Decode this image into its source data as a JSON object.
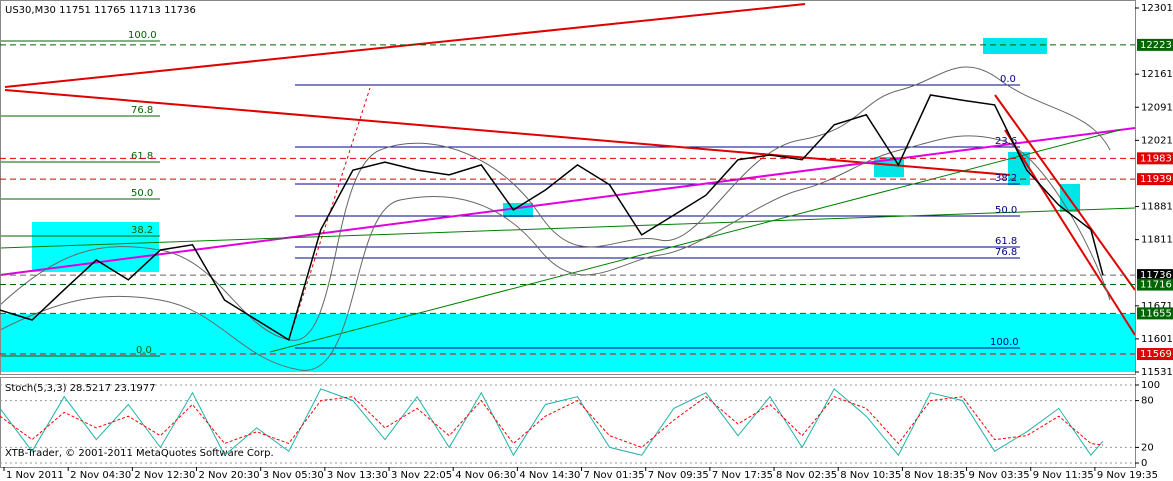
{
  "chart_data": [
    {
      "type": "line",
      "title": "US30,M30  11751 11765 11713 11736",
      "x": [
        0,
        8,
        16,
        24,
        32,
        40,
        48,
        56,
        64,
        72,
        80,
        88,
        96,
        104,
        112,
        120,
        128,
        136,
        144,
        152,
        160,
        168,
        176,
        184,
        192,
        200,
        208,
        216,
        224,
        232,
        240,
        248,
        256,
        264,
        272,
        275
      ],
      "xlim": [
        0,
        283
      ],
      "xticks": [
        {
          "value": 1,
          "label": "1 Nov 2011"
        },
        {
          "value": 17,
          "label": "2 Nov 04:30"
        },
        {
          "value": 33,
          "label": "2 Nov 12:30"
        },
        {
          "value": 49,
          "label": "2 Nov 20:30"
        },
        {
          "value": 65,
          "label": "3 Nov 05:30"
        },
        {
          "value": 81,
          "label": "3 Nov 13:30"
        },
        {
          "value": 97,
          "label": "3 Nov 22:05"
        },
        {
          "value": 113,
          "label": "4 Nov 06:30"
        },
        {
          "value": 129,
          "label": "4 Nov 14:30"
        },
        {
          "value": 145,
          "label": "7 Nov 01:35"
        },
        {
          "value": 161,
          "label": "7 Nov 09:35"
        },
        {
          "value": 177,
          "label": "7 Nov 17:35"
        },
        {
          "value": 193,
          "label": "8 Nov 02:35"
        },
        {
          "value": 209,
          "label": "8 Nov 10:35"
        },
        {
          "value": 225,
          "label": "8 Nov 18:35"
        },
        {
          "value": 241,
          "label": "9 Nov 03:35"
        },
        {
          "value": 257,
          "label": "9 Nov 11:35"
        },
        {
          "value": 273,
          "label": "9 Nov 19:35"
        }
      ],
      "color": "#000000",
      "values": [
        11662,
        11641,
        11705,
        11768,
        11726,
        11789,
        11800,
        11683,
        11641,
        11599,
        11832,
        11958,
        11975,
        11958,
        11948,
        11969,
        11874,
        11916,
        11969,
        11927,
        11821,
        11863,
        11905,
        11980,
        11990,
        11980,
        12054,
        12075,
        11969,
        12117,
        12106,
        12096,
        11958,
        11884,
        11832,
        11736
      ],
      "ylim": [
        11531,
        12301
      ],
      "yticks": [
        11531,
        11601,
        11671,
        11811,
        11881,
        12021,
        12091,
        12161,
        12301
      ],
      "levels": [
        {
          "value": 12223,
          "color": "#006400"
        },
        {
          "value": 11983,
          "color": "#e00000"
        },
        {
          "value": 11939,
          "color": "#e00000"
        },
        {
          "value": 11736,
          "color": "#000000"
        },
        {
          "value": 11716,
          "color": "#006400"
        },
        {
          "value": 11655,
          "color": "#006400"
        },
        {
          "value": 11569,
          "color": "#e00000"
        }
      ],
      "fib_left": [
        "100.0",
        "76.8",
        "61.8",
        "50.0",
        "38.2",
        "0.0"
      ],
      "fib_right": [
        "0.0",
        "23.6",
        "38.2",
        "50.0",
        "61.8",
        "76.8",
        "100.0"
      ],
      "copyright": "XTB-Trader, © 2001-2011 MetaQuotes Software Corp."
    },
    {
      "type": "line",
      "title": "Stoch(5,3,3) 28.5217 23.1977",
      "x": [
        0,
        8,
        16,
        24,
        32,
        40,
        48,
        56,
        64,
        72,
        80,
        88,
        96,
        104,
        112,
        120,
        128,
        136,
        144,
        152,
        160,
        168,
        176,
        184,
        192,
        200,
        208,
        216,
        224,
        232,
        240,
        248,
        256,
        264,
        272,
        275
      ],
      "xlim": [
        0,
        283
      ],
      "series": [
        {
          "color": "#20b2aa",
          "values": [
            70,
            15,
            85,
            30,
            75,
            20,
            90,
            10,
            45,
            15,
            95,
            80,
            30,
            85,
            20,
            90,
            10,
            75,
            85,
            20,
            10,
            70,
            90,
            35,
            85,
            20,
            95,
            60,
            10,
            90,
            80,
            15,
            40,
            70,
            10,
            28
          ]
        },
        {
          "color": "#ff0000",
          "values": [
            60,
            30,
            65,
            45,
            60,
            35,
            75,
            25,
            40,
            25,
            80,
            85,
            45,
            70,
            35,
            80,
            25,
            60,
            80,
            35,
            20,
            55,
            85,
            50,
            75,
            35,
            85,
            70,
            25,
            80,
            85,
            30,
            35,
            60,
            25,
            23
          ]
        }
      ],
      "ylim": [
        0,
        100
      ],
      "yticks": [
        0,
        20,
        80,
        100
      ]
    }
  ]
}
